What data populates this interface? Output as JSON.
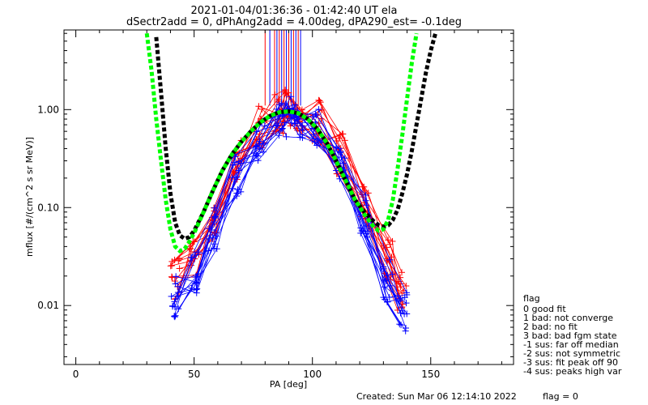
{
  "chart_data": {
    "type": "line",
    "title": "2021-01-04/01:36:36 - 01:42:40 UT ela",
    "subtitle": "dSectr2add = 0, dPhAng2add = 4.00deg, dPA290_est=  -0.1deg",
    "xlabel": "PA [deg]",
    "ylabel": "mflux [#/(cm^2 s sr MeV)]",
    "xlim": [
      -5,
      185
    ],
    "ylim": [
      0.0025,
      6.5
    ],
    "yscale": "log",
    "x_ticks": [
      0,
      50,
      100,
      150
    ],
    "x_tick_labels": [
      "0",
      "50",
      "100",
      "150"
    ],
    "y_ticks": [
      0.01,
      0.1,
      1.0
    ],
    "y_tick_labels": [
      "0.01",
      "0.10",
      "1.00"
    ],
    "grid": false,
    "colors": {
      "blue_series": "#0000ff",
      "red_series": "#ff0000",
      "fit_green": "#00ff00",
      "fit_black": "#000000"
    },
    "series": [
      {
        "style": "blue-crosses",
        "x": [
          42,
          50,
          58,
          68,
          78,
          86,
          90,
          94,
          102,
          112,
          122,
          132,
          138
        ],
        "y": [
          0.012,
          0.022,
          0.06,
          0.22,
          0.5,
          0.8,
          0.88,
          0.85,
          0.65,
          0.3,
          0.08,
          0.018,
          0.009
        ]
      },
      {
        "style": "red-crosses",
        "x": [
          42,
          50,
          58,
          68,
          78,
          86,
          90,
          94,
          102,
          112,
          122,
          132,
          138
        ],
        "y": [
          0.018,
          0.03,
          0.08,
          0.3,
          0.65,
          0.95,
          1.0,
          0.95,
          0.75,
          0.35,
          0.1,
          0.03,
          0.015
        ]
      },
      {
        "style": "green-fit",
        "x": [
          30,
          32,
          34,
          36,
          38,
          40,
          42,
          44,
          46,
          48,
          50,
          54,
          58,
          62,
          66,
          70,
          74,
          78,
          82,
          86,
          90,
          94,
          98,
          102,
          106,
          110,
          114,
          118,
          122,
          126,
          128,
          130,
          132,
          134,
          136,
          138,
          140,
          142,
          144
        ],
        "y": [
          6.0,
          2.5,
          0.8,
          0.3,
          0.12,
          0.06,
          0.04,
          0.036,
          0.038,
          0.045,
          0.055,
          0.09,
          0.15,
          0.24,
          0.35,
          0.47,
          0.6,
          0.74,
          0.86,
          0.94,
          0.96,
          0.92,
          0.8,
          0.64,
          0.46,
          0.3,
          0.19,
          0.12,
          0.085,
          0.063,
          0.058,
          0.06,
          0.075,
          0.12,
          0.25,
          0.55,
          1.3,
          3.0,
          6.0
        ]
      },
      {
        "style": "black-fit",
        "x": [
          34,
          36,
          38,
          40,
          42,
          44,
          46,
          48,
          50,
          54,
          58,
          62,
          66,
          70,
          74,
          78,
          82,
          86,
          90,
          94,
          98,
          102,
          106,
          110,
          114,
          118,
          122,
          126,
          128,
          130,
          132,
          134,
          136,
          138,
          140,
          142,
          144,
          146,
          148,
          150,
          152
        ],
        "y": [
          5.5,
          1.5,
          0.4,
          0.14,
          0.07,
          0.052,
          0.048,
          0.05,
          0.058,
          0.09,
          0.15,
          0.24,
          0.35,
          0.47,
          0.6,
          0.74,
          0.86,
          0.94,
          0.96,
          0.92,
          0.8,
          0.64,
          0.46,
          0.3,
          0.19,
          0.12,
          0.09,
          0.072,
          0.066,
          0.064,
          0.066,
          0.075,
          0.095,
          0.14,
          0.22,
          0.38,
          0.7,
          1.3,
          2.4,
          4.0,
          6.0
        ]
      }
    ],
    "vertical_lines": {
      "x": [
        80,
        82,
        84,
        85,
        86,
        87,
        88,
        89,
        90,
        91,
        92,
        93,
        94,
        95
      ],
      "colors": [
        "#ff0000",
        "#0000ff",
        "#ff0000",
        "#0000ff",
        "#ff0000",
        "#0000ff",
        "#ff0000",
        "#0000ff",
        "#ff0000",
        "#0000ff",
        "#ff0000",
        "#0000ff",
        "#ff0000",
        "#0000ff"
      ],
      "y_bottom": 1.1
    }
  },
  "legend": {
    "placement": "right",
    "title": "flag",
    "entries": [
      " 0 good fit",
      " 1 bad: not converge",
      " 2 bad: no fit",
      " 3 bad: bad fgm state",
      "-1 sus: far off median",
      "-2 sus: not symmetric",
      "-3 sus: fit peak off 90",
      "-4 sus: peaks high var"
    ]
  },
  "footer": {
    "created": "Created: Sun Mar 06 12:14:10 2022",
    "flag": "flag = 0"
  }
}
